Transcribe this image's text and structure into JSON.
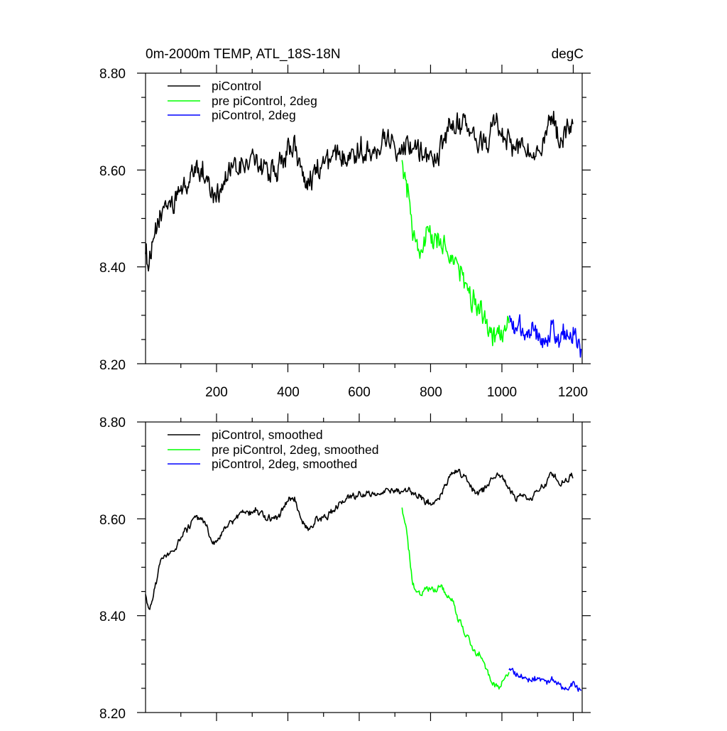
{
  "chart_data": [
    {
      "type": "line",
      "title": "0m-2000m TEMP, ATL_18S-18N",
      "units_label": "degC",
      "xlim": [
        1,
        1225
      ],
      "ylim": [
        8.2,
        8.8
      ],
      "xticks": [
        200,
        400,
        600,
        800,
        1000,
        1200
      ],
      "xtick_labels": [
        "200",
        "400",
        "600",
        "800",
        "1000",
        "1200"
      ],
      "yticks": [
        8.2,
        8.4,
        8.6,
        8.8
      ],
      "ytick_labels": [
        "8.20",
        "8.40",
        "8.60",
        "8.80"
      ],
      "legend_position": "top-left",
      "series": [
        {
          "name": "piControl",
          "color": "#000000",
          "noise": 0.018,
          "x": [
            1,
            10,
            20,
            40,
            60,
            80,
            100,
            120,
            140,
            160,
            175,
            190,
            200,
            220,
            250,
            280,
            310,
            340,
            370,
            400,
            420,
            440,
            460,
            480,
            500,
            530,
            560,
            600,
            640,
            680,
            700,
            720,
            740,
            760,
            780,
            800,
            830,
            860,
            880,
            900,
            930,
            960,
            980,
            1000,
            1020,
            1040,
            1060,
            1080,
            1100,
            1120,
            1140,
            1160,
            1180,
            1200
          ],
          "values": [
            8.44,
            8.41,
            8.43,
            8.5,
            8.53,
            8.53,
            8.56,
            8.57,
            8.6,
            8.6,
            8.58,
            8.55,
            8.55,
            8.58,
            8.6,
            8.61,
            8.62,
            8.6,
            8.6,
            8.64,
            8.64,
            8.6,
            8.58,
            8.6,
            8.61,
            8.62,
            8.64,
            8.64,
            8.65,
            8.66,
            8.66,
            8.65,
            8.66,
            8.65,
            8.64,
            8.62,
            8.64,
            8.69,
            8.7,
            8.68,
            8.65,
            8.66,
            8.69,
            8.69,
            8.66,
            8.64,
            8.65,
            8.64,
            8.66,
            8.67,
            8.7,
            8.67,
            8.67,
            8.69
          ]
        },
        {
          "name": "pre piControl, 2deg",
          "color": "#00ff00",
          "noise": 0.018,
          "x": [
            720,
            730,
            740,
            750,
            760,
            775,
            790,
            810,
            830,
            845,
            860,
            880,
            900,
            920,
            940,
            960,
            975,
            990,
            1005,
            1020
          ],
          "values": [
            8.62,
            8.58,
            8.54,
            8.48,
            8.44,
            8.45,
            8.46,
            8.45,
            8.45,
            8.44,
            8.42,
            8.39,
            8.36,
            8.33,
            8.31,
            8.27,
            8.26,
            8.25,
            8.27,
            8.28
          ]
        },
        {
          "name": "piControl, 2deg",
          "color": "#0000ff",
          "noise": 0.018,
          "x": [
            1020,
            1040,
            1060,
            1080,
            1100,
            1120,
            1140,
            1160,
            1180,
            1200,
            1210,
            1222
          ],
          "values": [
            8.29,
            8.28,
            8.27,
            8.27,
            8.27,
            8.26,
            8.27,
            8.26,
            8.25,
            8.27,
            8.25,
            8.24
          ]
        }
      ]
    },
    {
      "type": "line",
      "title": "",
      "xlim": [
        1,
        1225
      ],
      "ylim": [
        8.2,
        8.8
      ],
      "xticks": [
        200,
        400,
        600,
        800,
        1000,
        1200
      ],
      "xtick_labels": [],
      "yticks": [
        8.2,
        8.4,
        8.6,
        8.8
      ],
      "ytick_labels": [
        "8.20",
        "8.40",
        "8.60",
        "8.80"
      ],
      "legend_position": "top-left",
      "series": [
        {
          "name": "piControl, smoothed",
          "color": "#000000",
          "noise": 0.005,
          "x": [
            1,
            10,
            20,
            40,
            60,
            80,
            100,
            120,
            140,
            160,
            175,
            190,
            200,
            220,
            250,
            280,
            310,
            340,
            370,
            400,
            420,
            440,
            460,
            480,
            500,
            530,
            560,
            600,
            640,
            680,
            700,
            720,
            740,
            760,
            780,
            800,
            830,
            860,
            880,
            900,
            930,
            960,
            980,
            1000,
            1020,
            1040,
            1060,
            1080,
            1100,
            1120,
            1140,
            1160,
            1180,
            1200
          ],
          "values": [
            8.44,
            8.41,
            8.43,
            8.5,
            8.53,
            8.53,
            8.56,
            8.58,
            8.6,
            8.6,
            8.58,
            8.55,
            8.55,
            8.58,
            8.6,
            8.61,
            8.62,
            8.6,
            8.6,
            8.64,
            8.64,
            8.59,
            8.58,
            8.6,
            8.6,
            8.62,
            8.64,
            8.65,
            8.65,
            8.66,
            8.66,
            8.65,
            8.66,
            8.65,
            8.64,
            8.63,
            8.65,
            8.7,
            8.7,
            8.68,
            8.65,
            8.67,
            8.69,
            8.69,
            8.66,
            8.64,
            8.65,
            8.64,
            8.66,
            8.67,
            8.7,
            8.67,
            8.68,
            8.69
          ]
        },
        {
          "name": "pre piControl, 2deg, smoothed",
          "color": "#00ff00",
          "noise": 0.005,
          "x": [
            720,
            730,
            740,
            750,
            760,
            775,
            790,
            810,
            830,
            845,
            860,
            880,
            900,
            920,
            940,
            960,
            975,
            990,
            1005,
            1020
          ],
          "values": [
            8.62,
            8.58,
            8.53,
            8.47,
            8.45,
            8.44,
            8.46,
            8.45,
            8.46,
            8.44,
            8.43,
            8.39,
            8.36,
            8.33,
            8.32,
            8.28,
            8.26,
            8.25,
            8.27,
            8.28
          ]
        },
        {
          "name": "piControl, 2deg, smoothed",
          "color": "#0000ff",
          "noise": 0.005,
          "x": [
            1020,
            1040,
            1060,
            1080,
            1100,
            1120,
            1140,
            1160,
            1180,
            1200,
            1210,
            1222
          ],
          "values": [
            8.29,
            8.28,
            8.27,
            8.27,
            8.27,
            8.26,
            8.27,
            8.26,
            8.25,
            8.26,
            8.25,
            8.245
          ]
        }
      ]
    }
  ]
}
